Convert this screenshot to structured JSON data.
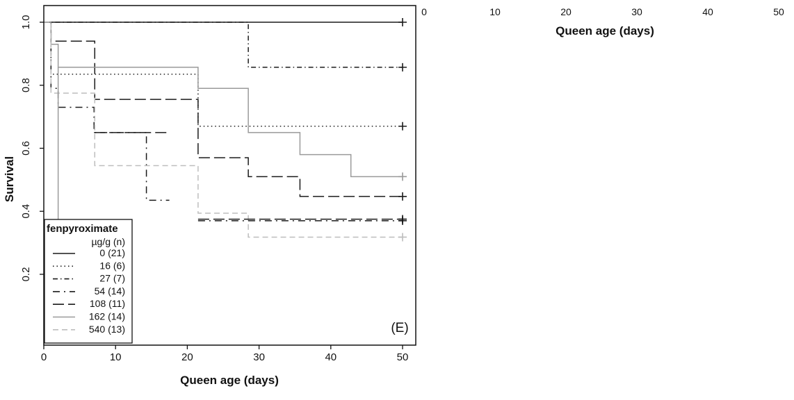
{
  "chart_data": {
    "type": "line",
    "xlabel": "Queen age (days)",
    "ylabel": "Survival",
    "xlim": [
      0,
      52
    ],
    "ylim": [
      0,
      1.03
    ],
    "xticks": [
      0,
      10,
      20,
      30,
      40,
      50
    ],
    "yticks": [
      0.2,
      0.4,
      0.6,
      0.8,
      1.0
    ],
    "x_tick_labels": [
      "0",
      "10",
      "20",
      "30",
      "40",
      "50"
    ],
    "y_tick_labels": [
      "0.2",
      "0.4",
      "0.6",
      "0.8",
      "1.0"
    ],
    "panel_label": "(E)",
    "legend": {
      "placement": "bottom-left",
      "title": "fenpyroximate",
      "subtitle": "µg/g (n)"
    },
    "series": [
      {
        "name": "0 (21)",
        "color": "#1a1a1a",
        "dash": "solid",
        "steps": [
          [
            0,
            1.0
          ],
          [
            50,
            1.0
          ]
        ],
        "censor": [
          50,
          1.0
        ]
      },
      {
        "name": "16 (6)",
        "color": "#1a1a1a",
        "dash": "dot",
        "steps": [
          [
            0,
            1.0
          ],
          [
            1,
            0.835
          ],
          [
            21.5,
            0.67
          ],
          [
            50,
            0.67
          ]
        ],
        "censor": [
          50,
          0.67
        ]
      },
      {
        "name": "27 (7)",
        "color": "#1a1a1a",
        "dash": "dashdot",
        "steps": [
          [
            0,
            1.0
          ],
          [
            28.5,
            0.857
          ],
          [
            50,
            0.857
          ]
        ],
        "censor": [
          50,
          0.857
        ]
      },
      {
        "name": "54 (14)",
        "color": "#1a1a1a",
        "dash": "longdot",
        "steps": [
          [
            0,
            1.0
          ],
          [
            1,
            0.79
          ],
          [
            2,
            0.73
          ],
          [
            7,
            0.65
          ],
          [
            14.3,
            0.435
          ],
          [
            17.5,
            0.435
          ]
        ],
        "censor": null
      },
      {
        "name": "108 (11)",
        "color": "#1a1a1a",
        "dash": "longdash",
        "steps": [
          [
            0,
            1.0
          ],
          [
            1,
            0.94
          ],
          [
            7.1,
            0.755
          ],
          [
            21.5,
            0.57
          ],
          [
            28.5,
            0.51
          ],
          [
            35.7,
            0.447
          ],
          [
            50,
            0.447
          ]
        ],
        "censor": [
          50,
          0.447
        ]
      },
      {
        "name": "162 (14)",
        "color": "#9a9a9a",
        "dash": "solid",
        "steps": [
          [
            0,
            1.0
          ],
          [
            1,
            0.93
          ],
          [
            2,
            0.857
          ],
          [
            21.5,
            0.79
          ],
          [
            28.5,
            0.65
          ],
          [
            35.7,
            0.58
          ],
          [
            42.8,
            0.51
          ],
          [
            50,
            0.51
          ]
        ],
        "censor": [
          50,
          0.51
        ]
      },
      {
        "name": "540 (13)",
        "color": "#bdbdbd",
        "dash": "dash",
        "steps": [
          [
            0,
            1.0
          ],
          [
            1,
            0.775
          ],
          [
            7.1,
            0.545
          ],
          [
            21.5,
            0.394
          ],
          [
            28.5,
            0.318
          ],
          [
            50,
            0.318
          ]
        ],
        "censor": [
          50,
          0.318
        ]
      }
    ],
    "extra_segments": [
      {
        "series": "54 (14)",
        "from": [
          7,
          0.65
        ],
        "to": [
          17.5,
          0.65
        ],
        "dash": "longdash"
      },
      {
        "series": "162 (14)",
        "from": [
          2,
          0.857
        ],
        "to": [
          2,
          0.0
        ],
        "dash": "solid"
      },
      {
        "series": "27 (7)",
        "from": [
          21.5,
          0.37
        ],
        "to": [
          50,
          0.37
        ],
        "dash": "longdot"
      },
      {
        "series": "108 (11)",
        "from": [
          21.5,
          0.375
        ],
        "to": [
          50,
          0.375
        ],
        "dash": "longdash"
      }
    ],
    "extra_censors": [
      [
        50,
        0.37
      ],
      [
        50,
        0.375
      ]
    ]
  },
  "ghost_axis": {
    "tick_labels": [
      "0",
      "10",
      "20",
      "30",
      "40",
      "50"
    ],
    "xlabel": "Queen age (days)"
  }
}
